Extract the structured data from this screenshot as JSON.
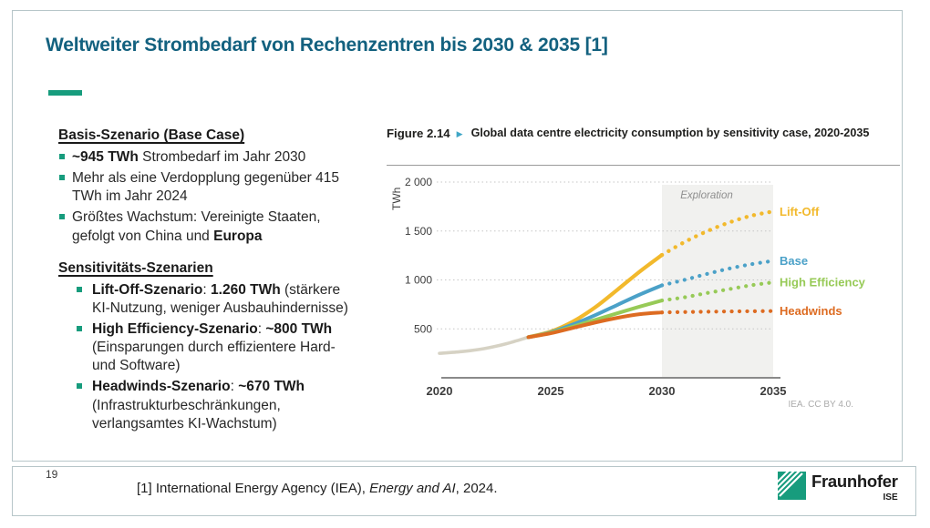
{
  "slide": {
    "title": "Weltweiter Strombedarf von Rechenzentren bis 2030 & 2035 [1]",
    "page_number": "19",
    "footnote": {
      "prefix": "[1] International Energy Agency (IEA), ",
      "italic": "Energy and AI",
      "suffix": ", 2024."
    },
    "logo": {
      "brand": "Fraunhofer",
      "institute": "ISE"
    }
  },
  "left_panel": {
    "sections": [
      {
        "heading": "Basis-Szenario (Base Case)",
        "indented": false,
        "items": [
          [
            {
              "t": "~945 TWh",
              "b": true
            },
            {
              "t": " Strombedarf im Jahr 2030"
            }
          ],
          [
            {
              "t": "Mehr als eine Verdopplung gegenüber 415 TWh im Jahr 2024"
            }
          ],
          [
            {
              "t": "Größtes Wachstum: Vereinigte Staaten, gefolgt von China und "
            },
            {
              "t": "Europa",
              "b": true
            }
          ]
        ]
      },
      {
        "heading": "Sensitivitäts-Szenarien",
        "indented": true,
        "items": [
          [
            {
              "t": "Lift-Off-Szenario",
              "b": true
            },
            {
              "t": ": "
            },
            {
              "t": "1.260 TWh",
              "b": true
            },
            {
              "t": " (stärkere KI-Nutzung, weniger Ausbauhindernisse)"
            }
          ],
          [
            {
              "t": "High Efficiency-Szenario",
              "b": true
            },
            {
              "t": ": "
            },
            {
              "t": "~800 TWh",
              "b": true
            },
            {
              "t": " (Einsparungen durch effizientere Hard- und Software)"
            }
          ],
          [
            {
              "t": "Headwinds-Szenario",
              "b": true
            },
            {
              "t": ": "
            },
            {
              "t": "~670 TWh",
              "b": true
            },
            {
              "t": " (Infrastrukturbeschränkungen, verlangsamtes KI-Wachstum)"
            }
          ]
        ]
      }
    ]
  },
  "figure": {
    "label": "Figure 2.14",
    "arrow_icon": "▶",
    "title": "Global data centre electricity consumption by sensitivity case, 2020-2035",
    "credit": "IEA. CC BY 4.0."
  },
  "chart_data": {
    "type": "line",
    "title": "Global data centre electricity consumption by sensitivity case, 2020-2035",
    "xlabel": "",
    "ylabel": "TWh",
    "ylim": [
      0,
      2000
    ],
    "yticks": [
      500,
      1000,
      1500,
      2000
    ],
    "ytick_labels": [
      "500",
      "1 000",
      "1 500",
      "2 000"
    ],
    "xticks": [
      2020,
      2025,
      2030,
      2035
    ],
    "x_range": [
      2020,
      2035
    ],
    "grid": "dotted-horizontal",
    "legend_position": "labels-right-of-lines",
    "exploration": {
      "label": "Exploration",
      "x_range": [
        2030,
        2035
      ],
      "fill": "#f1f1ef"
    },
    "series": [
      {
        "name": "Historical",
        "label": "",
        "color": "#d6d2c4",
        "width": 3.6,
        "solid": {
          "x": [
            2020,
            2021,
            2022,
            2023,
            2024
          ],
          "y": [
            250,
            268,
            298,
            348,
            415
          ]
        }
      },
      {
        "name": "Lift-Off",
        "label": "Lift-Off",
        "color": "#f2b92c",
        "width": 4.2,
        "solid": {
          "x": [
            2024,
            2025,
            2026,
            2027,
            2028,
            2029,
            2030
          ],
          "y": [
            415,
            472,
            575,
            720,
            900,
            1085,
            1255
          ]
        },
        "dotted": {
          "x": [
            2030,
            2031,
            2032,
            2033,
            2034,
            2035
          ],
          "y": [
            1255,
            1385,
            1495,
            1585,
            1655,
            1700
          ]
        }
      },
      {
        "name": "Base",
        "label": "Base",
        "color": "#4ba1c8",
        "width": 4,
        "solid": {
          "x": [
            2024,
            2025,
            2026,
            2027,
            2028,
            2029,
            2030
          ],
          "y": [
            415,
            465,
            545,
            640,
            745,
            850,
            945
          ]
        },
        "dotted": {
          "x": [
            2030,
            2031,
            2032,
            2033,
            2034,
            2035
          ],
          "y": [
            945,
            1000,
            1060,
            1115,
            1160,
            1195
          ]
        }
      },
      {
        "name": "High Efficiency",
        "label": "High Efficiency",
        "color": "#97ca57",
        "width": 4,
        "solid": {
          "x": [
            2024,
            2025,
            2026,
            2027,
            2028,
            2029,
            2030
          ],
          "y": [
            415,
            460,
            523,
            592,
            660,
            727,
            790
          ]
        },
        "dotted": {
          "x": [
            2030,
            2031,
            2032,
            2033,
            2034,
            2035
          ],
          "y": [
            790,
            822,
            865,
            905,
            945,
            975
          ]
        }
      },
      {
        "name": "Headwinds",
        "label": "Headwinds",
        "color": "#dd6b21",
        "width": 4,
        "solid": {
          "x": [
            2024,
            2025,
            2026,
            2027,
            2028,
            2029,
            2030
          ],
          "y": [
            415,
            455,
            510,
            565,
            613,
            650,
            668
          ]
        },
        "dotted": {
          "x": [
            2030,
            2031,
            2032,
            2033,
            2034,
            2035
          ],
          "y": [
            668,
            672,
            675,
            678,
            680,
            682
          ]
        }
      }
    ]
  }
}
